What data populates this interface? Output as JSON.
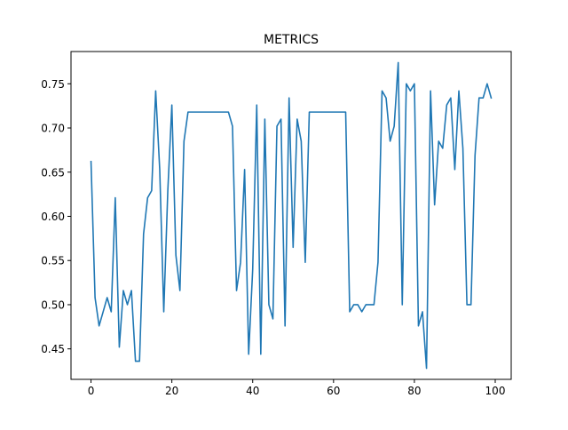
{
  "chart_data": {
    "type": "line",
    "title": "METRICS",
    "xlabel": "",
    "ylabel": "",
    "xlim": [
      -4.95,
      103.95
    ],
    "ylim": [
      0.4155,
      0.7865
    ],
    "xticks": [
      0,
      20,
      40,
      60,
      80,
      100
    ],
    "xtick_labels": [
      "0",
      "20",
      "40",
      "60",
      "80",
      "100"
    ],
    "yticks": [
      0.45,
      0.5,
      0.55,
      0.6,
      0.65,
      0.7,
      0.75
    ],
    "ytick_labels": [
      "0.45",
      "0.50",
      "0.55",
      "0.60",
      "0.65",
      "0.70",
      "0.75"
    ],
    "grid": false,
    "legend": "none",
    "line_color": "#1f77b4",
    "series": [
      {
        "x": [
          0,
          1,
          2,
          3,
          4,
          5,
          6,
          7,
          8,
          9,
          10,
          11,
          12,
          13,
          14,
          15,
          16,
          17,
          18,
          19,
          20,
          21,
          22,
          23,
          24,
          25,
          26,
          27,
          28,
          29,
          30,
          31,
          32,
          33,
          34,
          35,
          36,
          37,
          38,
          39,
          40,
          41,
          42,
          43,
          44,
          45,
          46,
          47,
          48,
          49,
          50,
          51,
          52,
          53,
          54,
          55,
          56,
          57,
          58,
          59,
          60,
          61,
          62,
          63,
          64,
          65,
          66,
          67,
          68,
          69,
          70,
          71,
          72,
          73,
          74,
          75,
          76,
          77,
          78,
          79,
          80,
          81,
          82,
          83,
          84,
          85,
          86,
          87,
          88,
          89,
          90,
          91,
          92,
          93,
          94,
          95,
          96,
          97,
          98,
          99
        ],
        "values": [
          0.662,
          0.508,
          0.476,
          0.492,
          0.508,
          0.492,
          0.621,
          0.452,
          0.516,
          0.5,
          0.516,
          0.436,
          0.436,
          0.58,
          0.621,
          0.629,
          0.742,
          0.653,
          0.492,
          0.629,
          0.726,
          0.556,
          0.516,
          0.685,
          0.718,
          0.718,
          0.718,
          0.718,
          0.718,
          0.718,
          0.718,
          0.718,
          0.718,
          0.718,
          0.718,
          0.702,
          0.516,
          0.548,
          0.653,
          0.444,
          0.54,
          0.726,
          0.444,
          0.71,
          0.5,
          0.484,
          0.702,
          0.71,
          0.476,
          0.734,
          0.565,
          0.71,
          0.685,
          0.548,
          0.718,
          0.718,
          0.718,
          0.718,
          0.718,
          0.718,
          0.718,
          0.718,
          0.718,
          0.718,
          0.492,
          0.5,
          0.5,
          0.492,
          0.5,
          0.5,
          0.5,
          0.548,
          0.742,
          0.734,
          0.685,
          0.702,
          0.774,
          0.5,
          0.75,
          0.742,
          0.75,
          0.476,
          0.492,
          0.428,
          0.742,
          0.613,
          0.685,
          0.677,
          0.726,
          0.734,
          0.653,
          0.742,
          0.677,
          0.5,
          0.5,
          0.669,
          0.734,
          0.734,
          0.75,
          0.734
        ]
      }
    ]
  }
}
